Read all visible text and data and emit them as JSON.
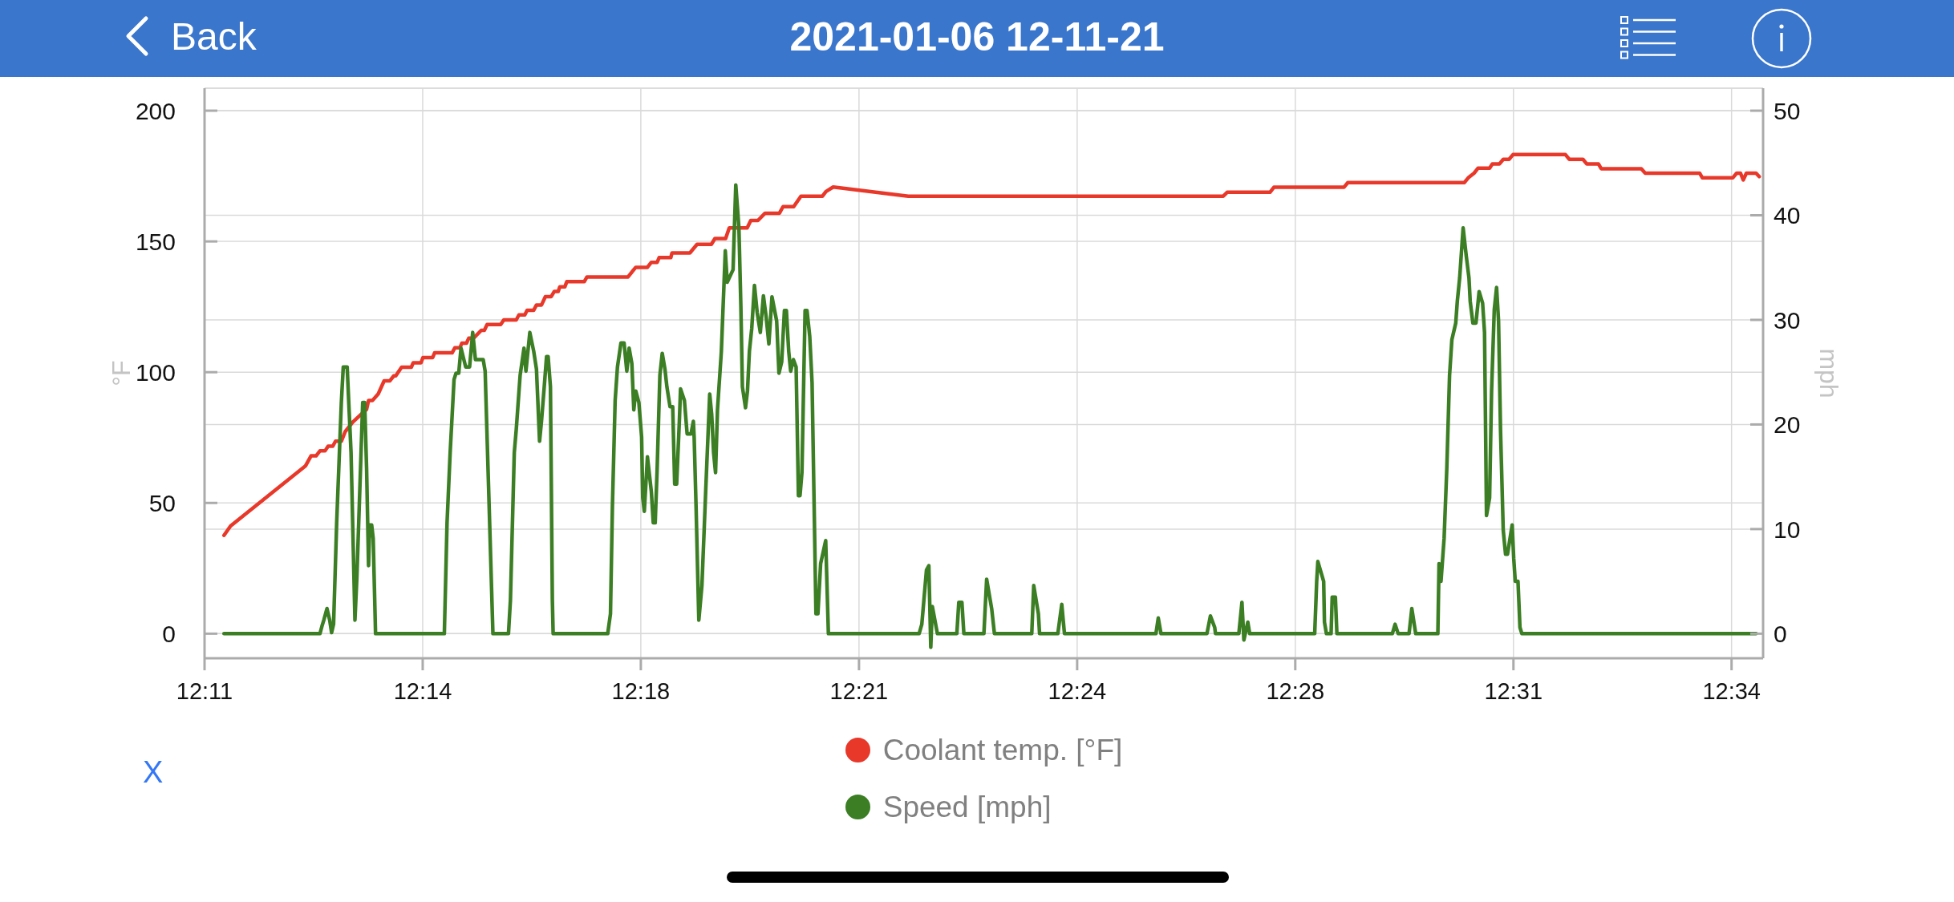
{
  "chart_data": {
    "type": "line",
    "title": "2021-01-06 12-11-21",
    "ylabel": "°F",
    "y2label": "mph",
    "annotations": [
      "Back",
      "X"
    ],
    "xlim": [
      12.18333,
      12.58025
    ],
    "xticks": [
      {
        "value": 12.18333,
        "label": "12:11"
      },
      {
        "value": 12.23889,
        "label": "12:14"
      },
      {
        "value": 12.29444,
        "label": "12:18"
      },
      {
        "value": 12.35,
        "label": "12:21"
      },
      {
        "value": 12.40556,
        "label": "12:24"
      },
      {
        "value": 12.46111,
        "label": "12:28"
      },
      {
        "value": 12.51667,
        "label": "12:31"
      },
      {
        "value": 12.57222,
        "label": "12:34"
      }
    ],
    "ylim": [
      -9.4,
      208.6
    ],
    "yticks": [
      0,
      50,
      100,
      150,
      200
    ],
    "y2lim": [
      -2.35,
      52.15
    ],
    "y2ticks": [
      0,
      10,
      20,
      30,
      40,
      50
    ],
    "grid": true,
    "legend": "bottom",
    "series": [
      {
        "name": "Coolant temp. [°F]",
        "color": "#e8382a",
        "x": [
          12.18828,
          12.18996,
          12.20906,
          12.21045,
          12.21173,
          12.21272,
          12.21401,
          12.2148,
          12.21599,
          12.21668,
          12.21817,
          12.21916,
          12.22114,
          12.2246,
          12.2251,
          12.22609,
          12.22757,
          12.22906,
          12.23054,
          12.23153,
          12.23203,
          12.23351,
          12.23599,
          12.23648,
          12.23846,
          12.23895,
          12.24143,
          12.24192,
          12.24638,
          12.24707,
          12.24836,
          12.24885,
          12.25004,
          12.25063,
          12.25182,
          12.2538,
          12.25459,
          12.25529,
          12.25875,
          12.25954,
          12.26271,
          12.2634,
          12.26489,
          12.26548,
          12.26716,
          12.26786,
          12.26914,
          12.27013,
          12.27162,
          12.27241,
          12.2734,
          12.2738,
          12.27508,
          12.27558,
          12.28003,
          12.28072,
          12.29117,
          12.29216,
          12.29315,
          12.29612,
          12.29711,
          12.2986,
          12.2991,
          12.30207,
          12.30237,
          12.30693,
          12.30875,
          12.31241,
          12.31331,
          12.31604,
          12.31696,
          12.32152,
          12.32244,
          12.32426,
          12.32608,
          12.32974,
          12.33066,
          12.33337,
          12.33521,
          12.34069,
          12.34159,
          12.34343,
          12.36257,
          12.44277,
          12.44376,
          12.45467,
          12.45566,
          12.4735,
          12.47449,
          12.50416,
          12.50515,
          12.50664,
          12.50763,
          12.5106,
          12.51129,
          12.51308,
          12.51407,
          12.51555,
          12.51655,
          12.52992,
          12.53091,
          12.53438,
          12.53537,
          12.53834,
          12.53903,
          12.54924,
          12.55023,
          12.5641,
          12.56479,
          12.57252,
          12.57351,
          12.5745,
          12.57519,
          12.57599,
          12.57846,
          12.57926
        ],
        "values": [
          37.6,
          41.2,
          64.2,
          68,
          68,
          69.9,
          69.9,
          71.7,
          71.7,
          73.6,
          73.6,
          77.3,
          81,
          85.8,
          89.2,
          89.2,
          91.7,
          96.7,
          96.7,
          98.6,
          98.6,
          101.9,
          101.9,
          103.6,
          103.6,
          105.6,
          105.6,
          107.4,
          107.4,
          109.3,
          109.3,
          111.1,
          111.1,
          113,
          113,
          116,
          116,
          118.2,
          118.2,
          120,
          120,
          121.9,
          121.9,
          123.7,
          123.7,
          125.7,
          125.7,
          128.9,
          128.9,
          130.9,
          130.9,
          132.6,
          132.6,
          134.6,
          134.6,
          136.4,
          136.4,
          138.3,
          140.1,
          140.1,
          142,
          142,
          143.8,
          143.8,
          145.6,
          145.6,
          148.9,
          148.9,
          151.1,
          151.1,
          155.2,
          155.2,
          158,
          158,
          160.8,
          160.8,
          163.3,
          163.3,
          167.3,
          167.3,
          169.1,
          170.8,
          167.3,
          167.3,
          168.8,
          168.8,
          170.7,
          170.7,
          172.5,
          172.5,
          174.3,
          176.1,
          178,
          178,
          179.6,
          179.6,
          181.4,
          181.4,
          183.2,
          183.2,
          181.4,
          181.4,
          179.6,
          179.6,
          177.8,
          177.8,
          176.1,
          176.1,
          174.3,
          174.3,
          176.1,
          176.1,
          173.5,
          176.1,
          176.1,
          174.8
        ]
      },
      {
        "name": "Speed [mph]",
        "color": "#3b7e23",
        "axis": "y2",
        "x": [
          12.18828,
          12.21272,
          12.21322,
          12.21371,
          12.21451,
          12.2152,
          12.21569,
          12.21619,
          12.21698,
          12.21817,
          12.21866,
          12.21965,
          12.22064,
          12.22163,
          12.22213,
          12.22361,
          12.22411,
          12.2246,
          12.2251,
          12.22539,
          12.22589,
          12.22628,
          12.22688,
          12.2444,
          12.24509,
          12.24588,
          12.24687,
          12.24737,
          12.24806,
          12.24865,
          12.24984,
          12.25083,
          12.25162,
          12.25232,
          12.2543,
          12.25479,
          12.25677,
          12.26073,
          12.26123,
          12.26221,
          12.26271,
          12.2637,
          12.26469,
          12.26518,
          12.26617,
          12.26716,
          12.26786,
          12.26865,
          12.26914,
          12.26984,
          12.27043,
          12.27083,
          12.27142,
          12.27191,
          12.27211,
          12.28601,
          12.28671,
          12.2872,
          12.2879,
          12.28849,
          12.28938,
          12.29017,
          12.29087,
          12.29146,
          12.29216,
          12.29265,
          12.29315,
          12.29394,
          12.29464,
          12.29493,
          12.29533,
          12.29612,
          12.29711,
          12.29761,
          12.2981,
          12.2986,
          12.29929,
          12.29989,
          12.30058,
          12.30108,
          12.30187,
          12.30256,
          12.30306,
          12.30356,
          12.30425,
          12.30455,
          12.30554,
          12.30623,
          12.30722,
          12.30782,
          12.30802,
          12.30851,
          12.30921,
          12.31,
          12.31099,
          12.31198,
          12.31248,
          12.31297,
          12.31347,
          12.31396,
          12.31495,
          12.31595,
          12.31644,
          12.31793,
          12.31862,
          12.31942,
          12.31991,
          12.32031,
          12.3211,
          12.3216,
          12.32209,
          12.32269,
          12.32338,
          12.32407,
          12.32487,
          12.32566,
          12.32635,
          12.32705,
          12.32784,
          12.32903,
          12.32962,
          12.33032,
          12.33101,
          12.33151,
          12.3321,
          12.3326,
          12.33329,
          12.33399,
          12.33458,
          12.33498,
          12.33547,
          12.33627,
          12.33676,
          12.33746,
          12.33805,
          12.33904,
          12.33954,
          12.34023,
          12.34152,
          12.34221,
          12.36531,
          12.366,
          12.36719,
          12.36779,
          12.36828,
          12.36868,
          12.36997,
          12.37492,
          12.37542,
          12.37621,
          12.37671,
          12.38181,
          12.38251,
          12.38379,
          12.38449,
          12.394,
          12.3945,
          12.39569,
          12.39599,
          12.40064,
          12.40164,
          12.40233,
          12.42562,
          12.42622,
          12.42691,
          12.43861,
          12.4395,
          12.44059,
          12.44079,
          12.44674,
          12.44753,
          12.44802,
          12.44902,
          12.44951,
          12.46606,
          12.46656,
          12.46686,
          12.46834,
          12.46854,
          12.46904,
          12.47023,
          12.47052,
          12.47132,
          12.47171,
          12.48583,
          12.48653,
          12.48732,
          12.49009,
          12.49079,
          12.49178,
          12.49742,
          12.49772,
          12.49822,
          12.49901,
          12.4997,
          12.5004,
          12.50099,
          12.50198,
          12.50238,
          12.50297,
          12.50386,
          12.50466,
          12.50535,
          12.50565,
          12.50634,
          12.50713,
          12.50793,
          12.50882,
          12.50931,
          12.50981,
          12.5106,
          12.5111,
          12.51179,
          12.51238,
          12.51288,
          12.51338,
          12.51407,
          12.51466,
          12.51516,
          12.51635,
          12.51674,
          12.51714,
          12.51783,
          12.51833,
          12.51882,
          12.57846
        ],
        "values": [
          0,
          0,
          0.7,
          1.3,
          2.4,
          1.3,
          0.1,
          0.9,
          10.6,
          22.1,
          25.5,
          25.5,
          17.3,
          1.3,
          5.4,
          22.1,
          22.1,
          15.8,
          6.5,
          10.4,
          10.4,
          9.1,
          0,
          0,
          10.6,
          17.3,
          24.3,
          24.9,
          24.9,
          27.3,
          25.5,
          25.5,
          28.8,
          26.2,
          26.2,
          25.1,
          0,
          0,
          3.2,
          17.3,
          19.5,
          24.7,
          27.3,
          25.1,
          28.8,
          27,
          25.3,
          18.4,
          20.3,
          23.6,
          26.5,
          26.5,
          23.6,
          3.2,
          0,
          0,
          1.9,
          12.1,
          22.3,
          25.5,
          27.8,
          27.8,
          25.1,
          27.3,
          25.8,
          21.4,
          23.2,
          22.1,
          18.8,
          13,
          11.7,
          16.9,
          13.6,
          10.6,
          10.6,
          15.8,
          24.7,
          26.8,
          25.3,
          23.6,
          21.7,
          21.7,
          14.3,
          14.3,
          20.3,
          23.4,
          22.3,
          19.1,
          19.1,
          20.3,
          18.8,
          12.1,
          1.3,
          4.6,
          13.9,
          22.9,
          21,
          17.3,
          15.4,
          21.4,
          27,
          36.6,
          33.6,
          34.8,
          42.9,
          38.8,
          31.4,
          23.6,
          21.6,
          23.2,
          27,
          29.2,
          33.3,
          30.7,
          28.8,
          32.3,
          30.3,
          27.7,
          32.2,
          29.9,
          24.9,
          26,
          30.9,
          30.9,
          27,
          25.1,
          26.2,
          25.5,
          13.2,
          13.2,
          15.4,
          30.9,
          30.9,
          28.4,
          24,
          1.9,
          1.9,
          6.7,
          8.9,
          0,
          0,
          0.9,
          6.1,
          6.5,
          -1.3,
          2.6,
          0,
          0,
          3,
          3,
          0,
          0,
          5.2,
          2.4,
          0,
          0,
          4.6,
          1.9,
          0,
          0,
          2.8,
          0,
          0,
          1.5,
          0,
          0,
          1.7,
          0.6,
          0,
          0,
          3,
          -0.6,
          1.1,
          0,
          0,
          5,
          6.9,
          5,
          1.1,
          0,
          0,
          3.5,
          3.5,
          0,
          0,
          0.9,
          0,
          0,
          2.4,
          0,
          0,
          6.7,
          5,
          9.1,
          15.8,
          24.7,
          28.1,
          29.7,
          31.8,
          34,
          38.8,
          36.1,
          34,
          31.8,
          29.7,
          29.7,
          32.7,
          31.6,
          28.8,
          11.3,
          13,
          23.2,
          31,
          33.1,
          29.9,
          19.5,
          9.9,
          7.6,
          7.6,
          10.4,
          7.2,
          5,
          5,
          0.6,
          0,
          0
        ]
      }
    ]
  }
}
